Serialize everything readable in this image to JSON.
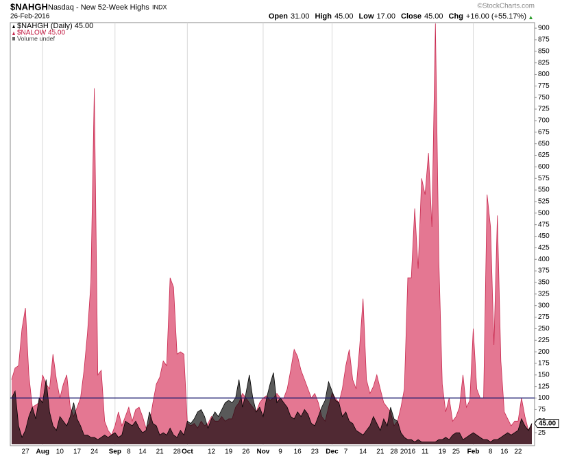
{
  "header": {
    "symbol": "$NAHGH",
    "name": "Nasdaq - New 52-Week Highs",
    "exchange": "INDX",
    "date": "26-Feb-2016",
    "credit": "©StockCharts.com",
    "quote": [
      {
        "label": "Open",
        "value": "31.00"
      },
      {
        "label": "High",
        "value": "45.00"
      },
      {
        "label": "Low",
        "value": "17.00"
      },
      {
        "label": "Close",
        "value": "45.00"
      },
      {
        "label": "Chg",
        "value": "+16.00 (+55.17%)"
      }
    ]
  },
  "chart_data": {
    "type": "area",
    "legend": [
      "$NAHGH (Daily) 45.00",
      "$NALOW 45.00",
      "Volume undef"
    ],
    "categories": [
      null,
      null,
      null,
      null,
      "27",
      null,
      null,
      null,
      null,
      "Aug",
      null,
      null,
      null,
      null,
      "10",
      null,
      null,
      null,
      null,
      "17",
      null,
      null,
      null,
      null,
      "24",
      null,
      null,
      null,
      null,
      null,
      "Sep",
      null,
      null,
      null,
      "8",
      null,
      null,
      null,
      "14",
      null,
      null,
      null,
      null,
      "21",
      null,
      null,
      null,
      null,
      "28",
      null,
      null,
      "Oct",
      null,
      null,
      null,
      null,
      null,
      null,
      "12",
      null,
      null,
      null,
      null,
      "19",
      null,
      null,
      null,
      null,
      "26",
      null,
      null,
      null,
      null,
      "Nov",
      null,
      null,
      null,
      null,
      "9",
      null,
      null,
      null,
      null,
      "16",
      null,
      null,
      null,
      null,
      "23",
      null,
      null,
      null,
      null,
      "Dec",
      null,
      null,
      null,
      "7",
      null,
      null,
      null,
      null,
      "14",
      null,
      null,
      null,
      null,
      "21",
      null,
      null,
      null,
      "28",
      null,
      null,
      null,
      "2016",
      null,
      null,
      null,
      null,
      "11",
      null,
      null,
      null,
      null,
      "19",
      null,
      null,
      null,
      "25",
      null,
      null,
      null,
      null,
      "Feb",
      null,
      null,
      null,
      null,
      "8",
      null,
      null,
      null,
      "16",
      null,
      null,
      null,
      "22",
      null,
      null,
      null,
      null
    ],
    "series": [
      {
        "name": "$NALOW",
        "color": "#e47792",
        "line_color": "#c8294f",
        "values": [
          140,
          165,
          170,
          250,
          295,
          150,
          80,
          85,
          90,
          150,
          130,
          120,
          195,
          140,
          100,
          130,
          150,
          80,
          60,
          80,
          100,
          160,
          240,
          350,
          770,
          150,
          160,
          50,
          30,
          20,
          40,
          70,
          40,
          60,
          80,
          50,
          75,
          80,
          60,
          35,
          45,
          90,
          130,
          145,
          180,
          170,
          360,
          340,
          195,
          200,
          195,
          45,
          40,
          45,
          35,
          50,
          40,
          45,
          60,
          50,
          50,
          60,
          50,
          55,
          55,
          80,
          90,
          110,
          100,
          90,
          80,
          70,
          90,
          100,
          105,
          95,
          100,
          110,
          100,
          100,
          120,
          160,
          205,
          190,
          160,
          140,
          120,
          100,
          110,
          90,
          60,
          50,
          80,
          110,
          100,
          90,
          120,
          170,
          205,
          140,
          120,
          210,
          315,
          140,
          110,
          125,
          150,
          120,
          90,
          80,
          70,
          40,
          50,
          80,
          120,
          360,
          360,
          510,
          380,
          575,
          540,
          630,
          470,
          910,
          400,
          130,
          70,
          100,
          50,
          60,
          80,
          150,
          80,
          95,
          250,
          120,
          100,
          100,
          540,
          470,
          215,
          495,
          180,
          70,
          55,
          40,
          50,
          50,
          100,
          60,
          30,
          45
        ]
      },
      {
        "name": "$NAHGH",
        "color": "#000000",
        "line_color": "#000000",
        "values": [
          100,
          115,
          40,
          15,
          30,
          60,
          80,
          55,
          100,
          90,
          140,
          70,
          40,
          30,
          60,
          50,
          40,
          60,
          90,
          55,
          40,
          20,
          20,
          15,
          15,
          10,
          15,
          20,
          15,
          20,
          25,
          15,
          20,
          50,
          45,
          40,
          50,
          35,
          25,
          30,
          70,
          45,
          40,
          20,
          25,
          20,
          35,
          20,
          15,
          30,
          20,
          50,
          45,
          55,
          70,
          75,
          60,
          35,
          55,
          70,
          60,
          75,
          90,
          95,
          90,
          100,
          140,
          80,
          110,
          150,
          100,
          70,
          80,
          60,
          100,
          130,
          155,
          90,
          100,
          90,
          80,
          60,
          55,
          70,
          60,
          75,
          65,
          45,
          40,
          60,
          80,
          95,
          135,
          115,
          95,
          90,
          60,
          70,
          50,
          45,
          30,
          25,
          20,
          30,
          40,
          60,
          45,
          30,
          55,
          40,
          80,
          55,
          50,
          25,
          15,
          10,
          10,
          5,
          10,
          5,
          5,
          5,
          5,
          5,
          10,
          10,
          15,
          10,
          20,
          25,
          25,
          10,
          15,
          20,
          25,
          20,
          15,
          10,
          10,
          5,
          10,
          10,
          15,
          20,
          25,
          20,
          25,
          30,
          55,
          40,
          30,
          45
        ],
        "value_labels": {
          "151": "45.00"
        }
      }
    ],
    "reference_line": {
      "value": 100,
      "color": "#1a1a6e"
    },
    "ylim": [
      -3,
      912
    ],
    "yticks": [
      25,
      50,
      75,
      100,
      125,
      150,
      175,
      200,
      225,
      250,
      275,
      300,
      325,
      350,
      375,
      400,
      425,
      450,
      475,
      500,
      525,
      550,
      575,
      600,
      625,
      650,
      675,
      700,
      725,
      750,
      775,
      800,
      825,
      850,
      875,
      900
    ]
  }
}
